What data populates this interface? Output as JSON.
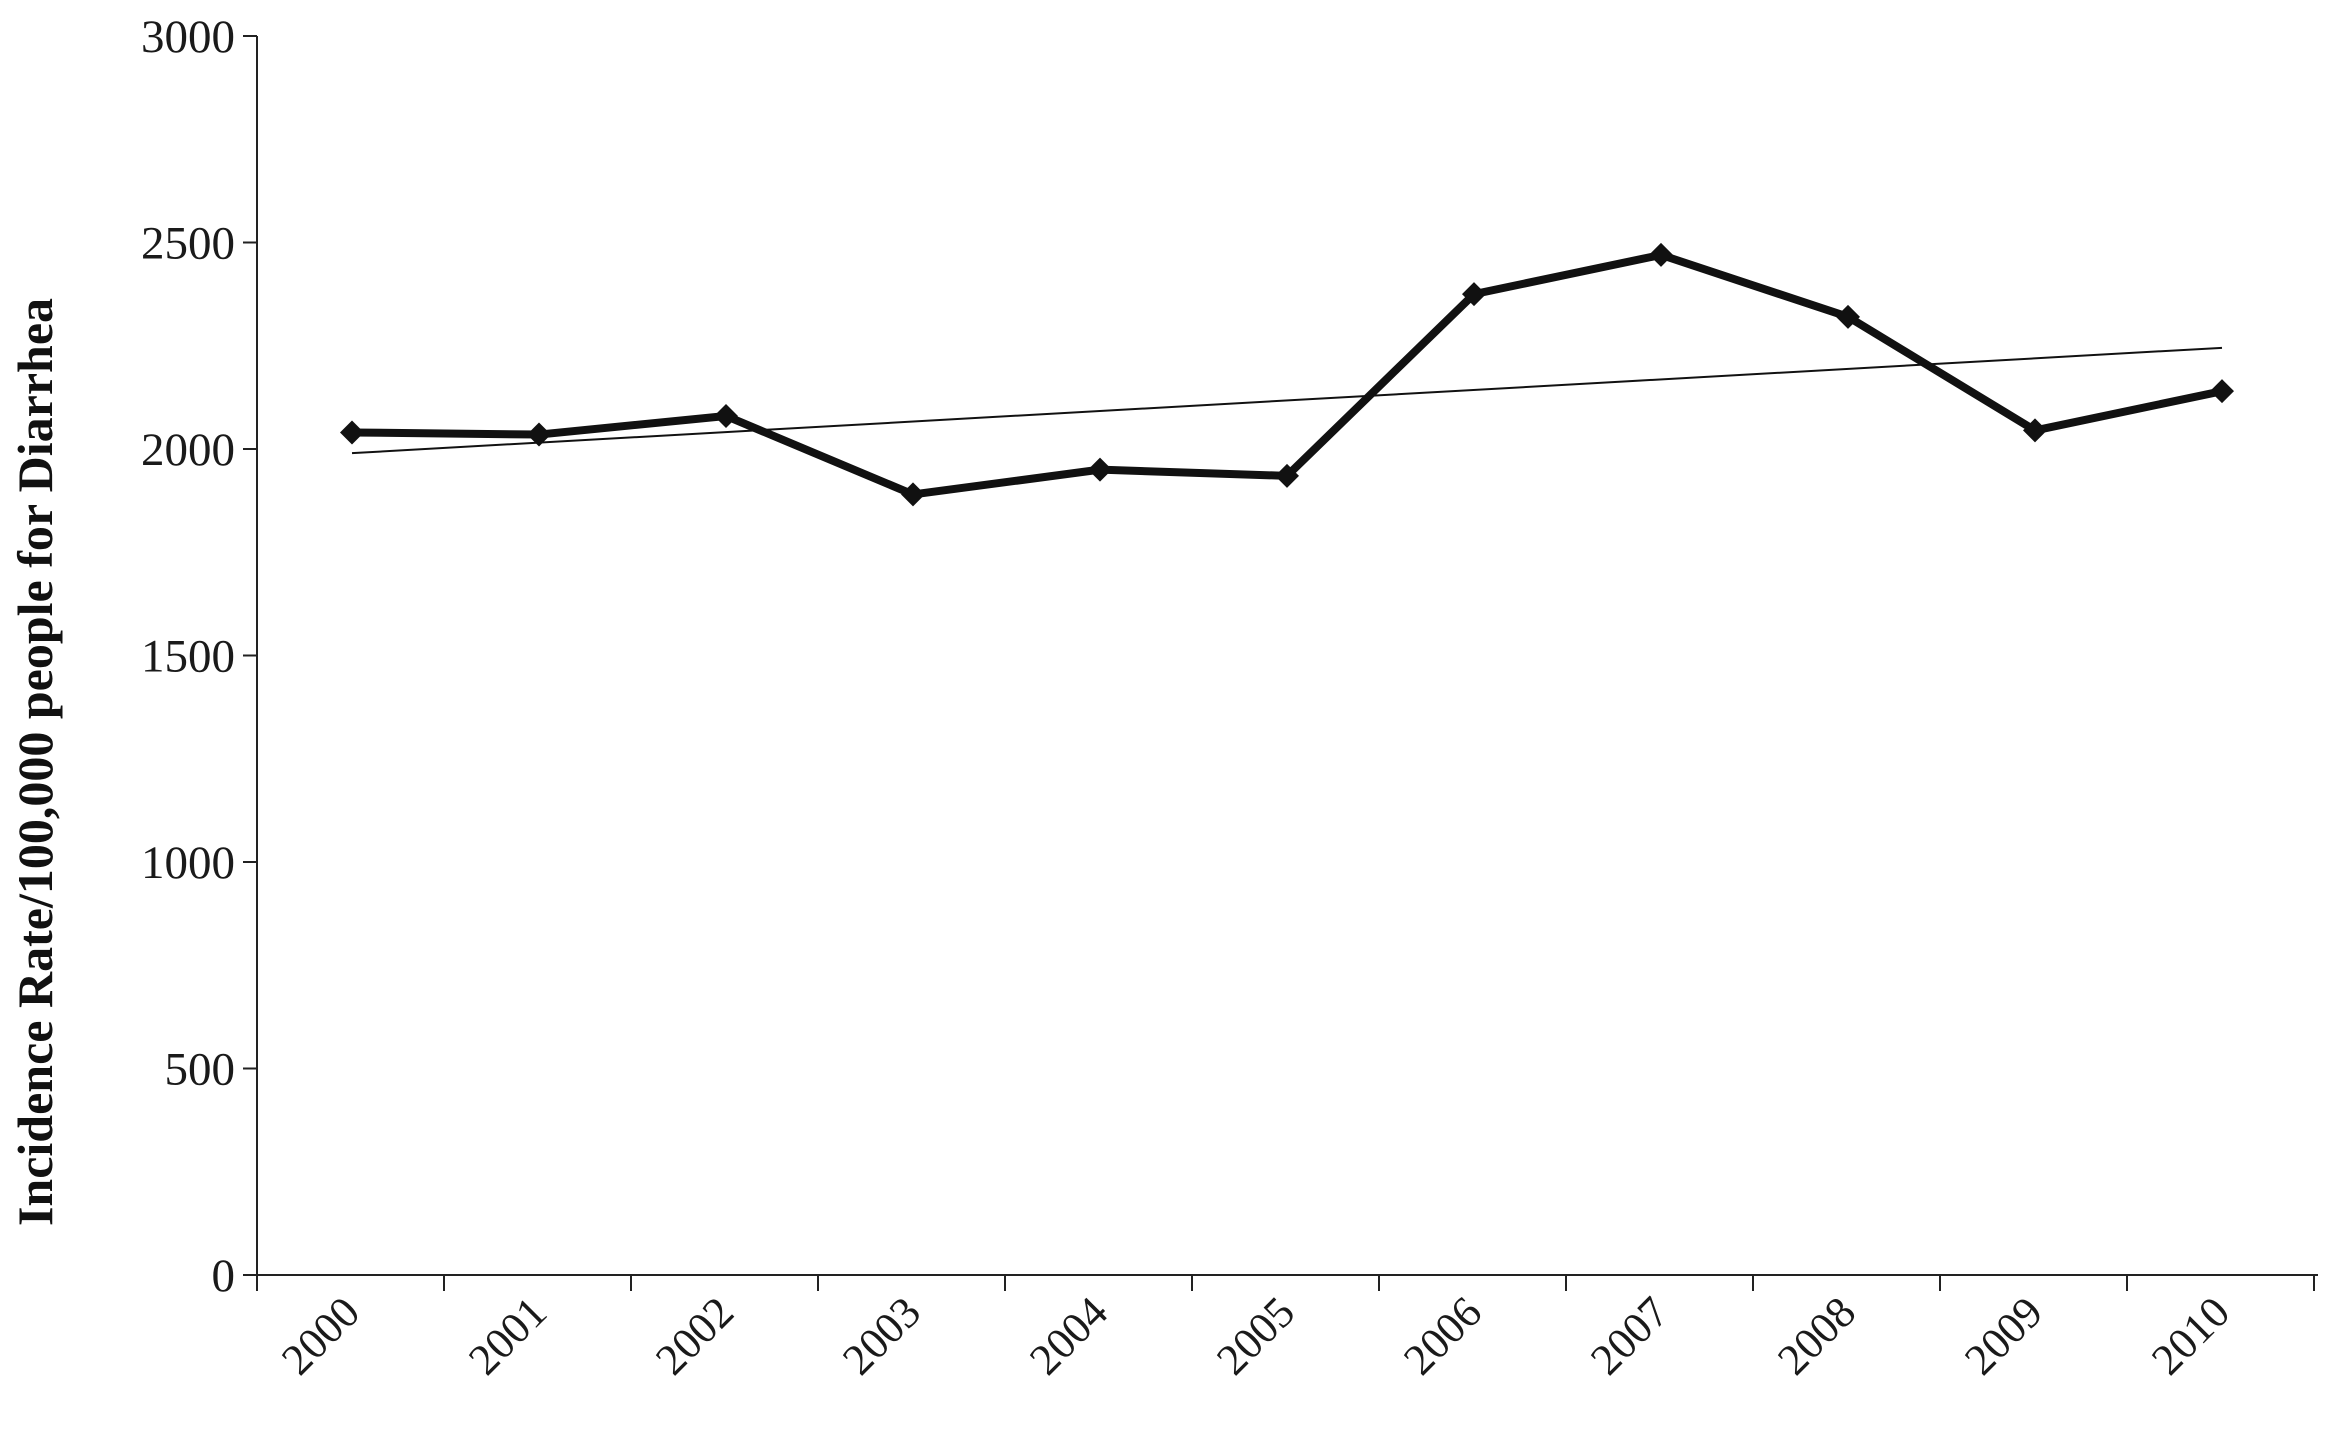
{
  "chart_data": {
    "type": "line",
    "xlabel": "",
    "ylabel": "Incidence Rate/100,000 people for Diarrhea",
    "categories": [
      "2000",
      "2001",
      "2002",
      "2003",
      "2004",
      "2005",
      "2006",
      "2007",
      "2008",
      "2009",
      "2010"
    ],
    "series": [
      {
        "values": [
          2040,
          2035,
          2080,
          1890,
          1950,
          1935,
          2375,
          2470,
          2320,
          2045,
          2140
        ],
        "color": "#111111",
        "marker": "diamond"
      }
    ],
    "trendline": {
      "type": "linear",
      "start": 1990,
      "end": 2245,
      "color": "#111111"
    },
    "ylim": [
      0,
      3000
    ],
    "yticks": [
      "0",
      "500",
      "1000",
      "1500",
      "2000",
      "2500",
      "3000"
    ],
    "grid": false,
    "legend": "none"
  }
}
